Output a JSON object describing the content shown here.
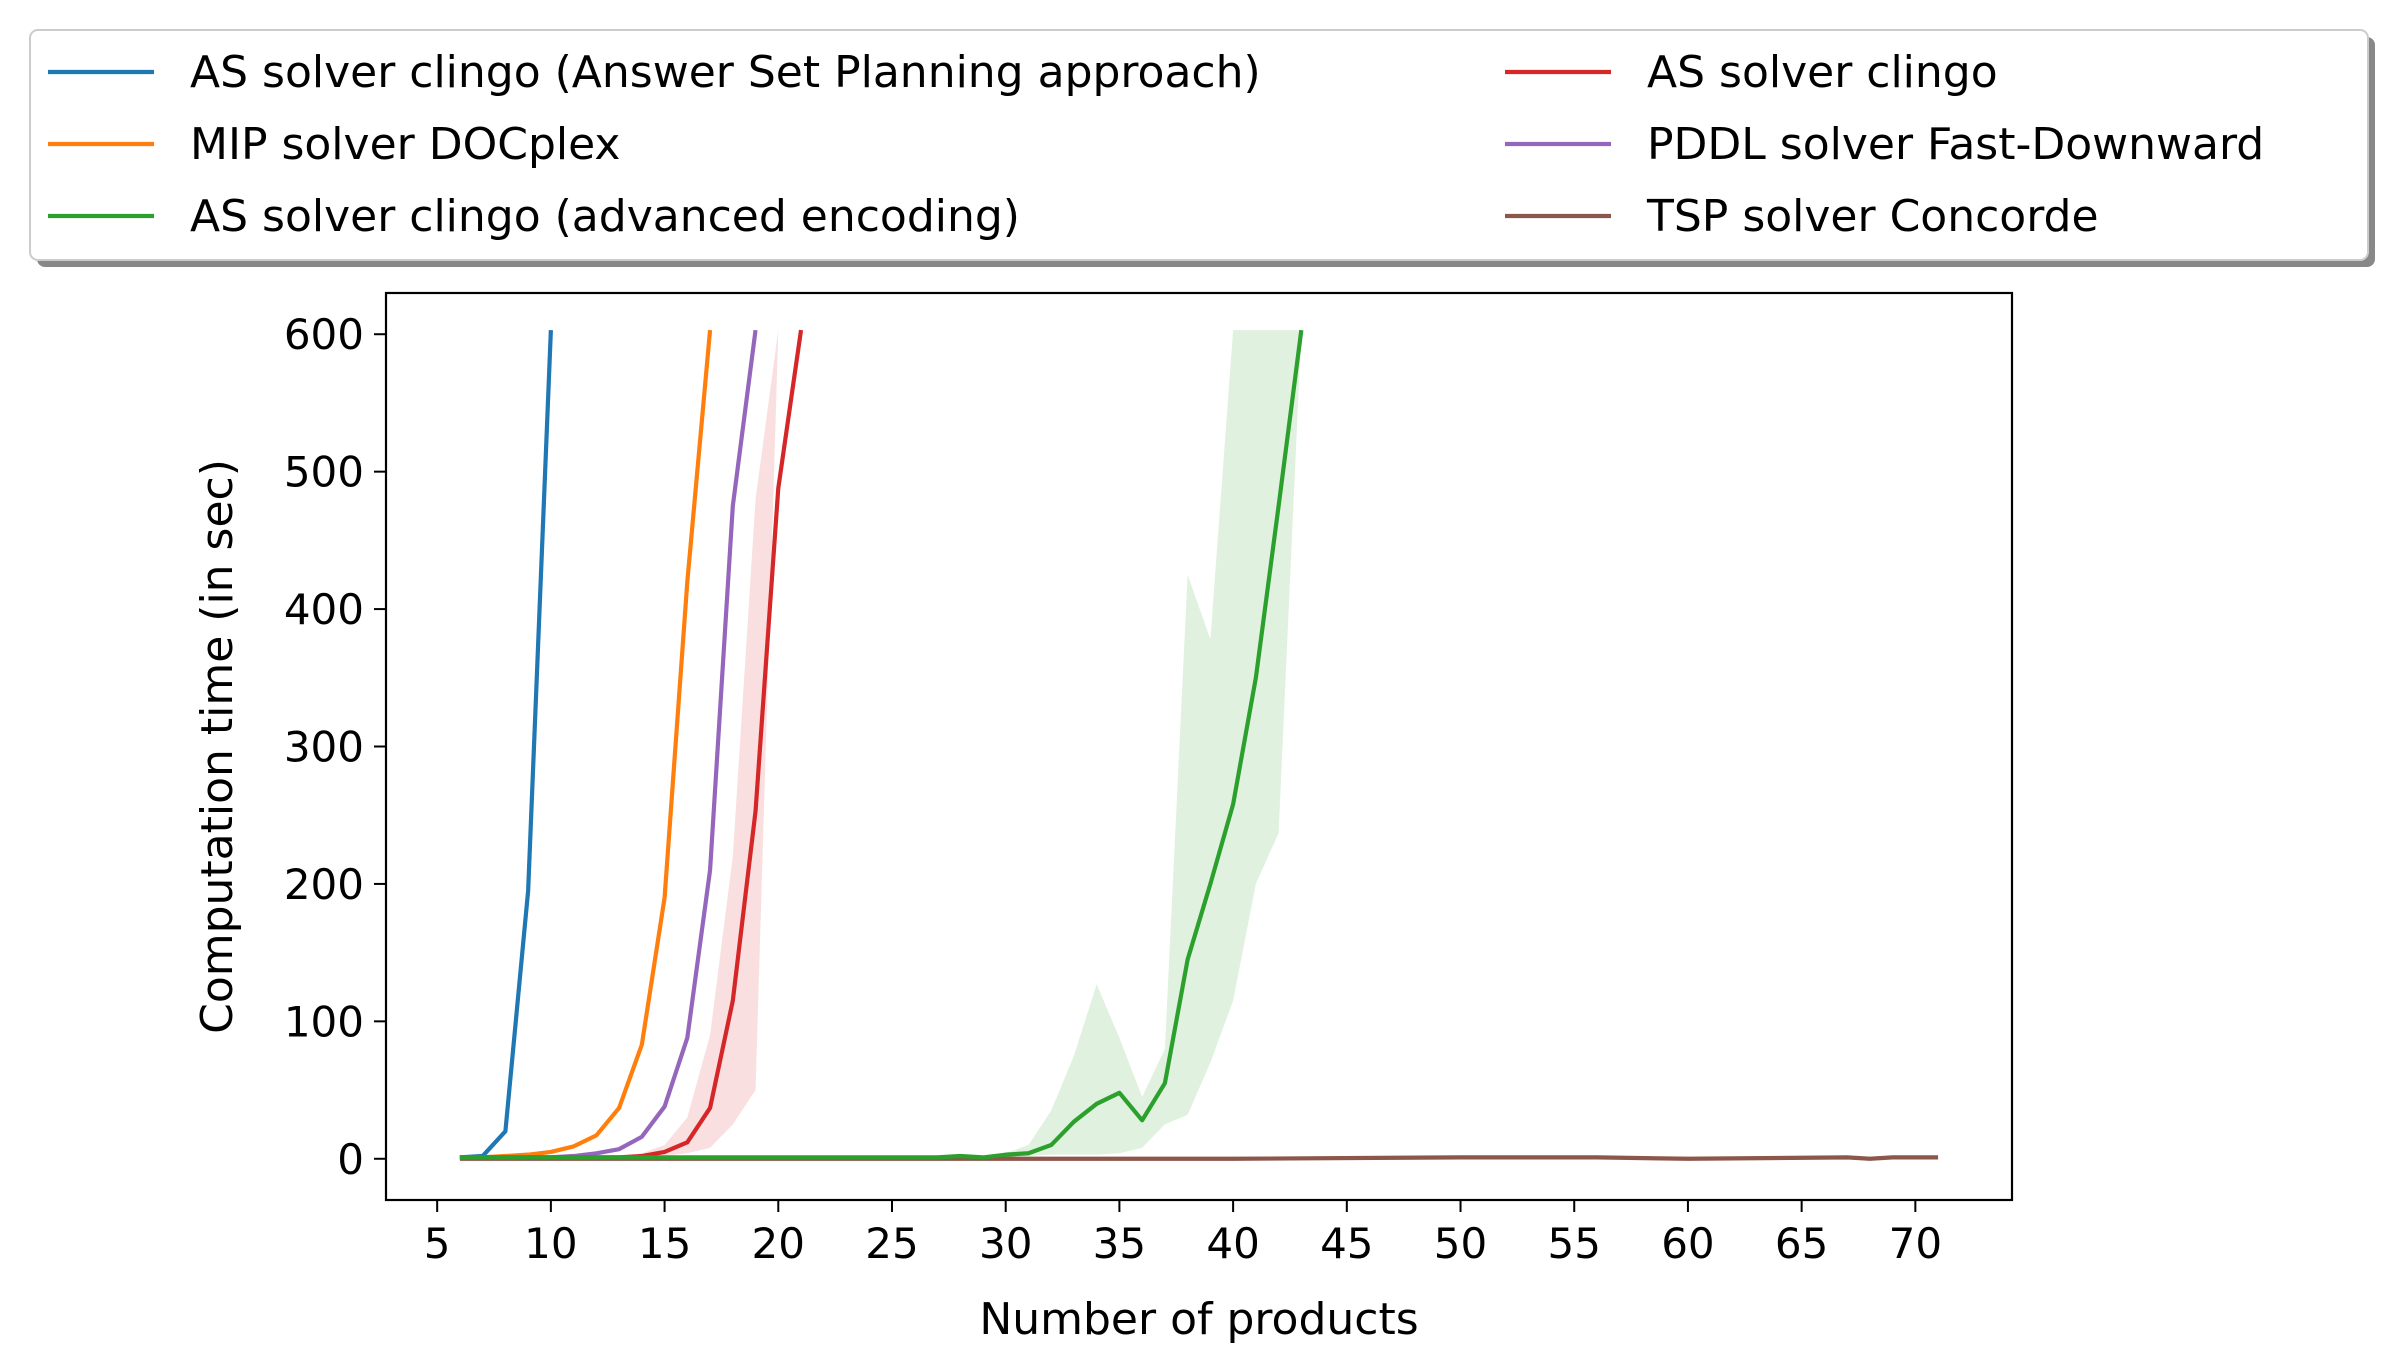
{
  "chart_data": {
    "type": "line",
    "title": "",
    "xlabel": "Number of products",
    "ylabel": "Computation time (in sec)",
    "xlim": [
      2.75,
      74.25
    ],
    "ylim": [
      -30,
      630
    ],
    "xticks": [
      5,
      10,
      15,
      20,
      25,
      30,
      35,
      40,
      45,
      50,
      55,
      60,
      65,
      70
    ],
    "yticks": [
      0,
      100,
      200,
      300,
      400,
      500,
      600
    ],
    "grid": false,
    "legend_placement": "top (above plot, two columns)",
    "series": [
      {
        "name": "AS solver clingo (Answer Set Planning approach)",
        "color": "#1f77b4",
        "x": [
          6,
          7,
          8,
          9,
          10
        ],
        "y": [
          1,
          2,
          20,
          195,
          603
        ]
      },
      {
        "name": "MIP solver DOCplex",
        "color": "#ff7f0e",
        "x": [
          6,
          7,
          8,
          9,
          10,
          11,
          12,
          13,
          14,
          15,
          16,
          17
        ],
        "y": [
          1,
          1,
          2,
          3,
          5,
          9,
          17,
          37,
          83,
          190,
          420,
          603
        ]
      },
      {
        "name": "AS solver clingo (advanced encoding)",
        "color": "#2ca02c",
        "x": [
          6,
          8,
          10,
          12,
          14,
          16,
          18,
          20,
          22,
          24,
          26,
          27,
          28,
          29,
          30,
          31,
          32,
          33,
          34,
          35,
          36,
          37,
          38,
          39,
          40,
          41,
          42,
          43
        ],
        "y": [
          1,
          1,
          1,
          1,
          1,
          1,
          1,
          1,
          1,
          1,
          1,
          1,
          2,
          1,
          3,
          4,
          10,
          27,
          40,
          48,
          28,
          55,
          145,
          200,
          258,
          350,
          475,
          603
        ],
        "band": {
          "x": [
            30,
            31,
            32,
            33,
            34,
            35,
            36,
            37,
            38,
            39,
            40,
            41,
            42,
            43
          ],
          "lower": [
            1,
            2,
            3,
            3,
            3,
            4,
            8,
            25,
            32,
            70,
            115,
            200,
            237,
            603
          ],
          "upper": [
            4,
            10,
            35,
            75,
            127,
            88,
            45,
            80,
            425,
            378,
            603,
            603,
            603,
            603
          ]
        }
      },
      {
        "name": "AS solver clingo",
        "color": "#d62728",
        "x": [
          6,
          8,
          10,
          12,
          13,
          14,
          15,
          16,
          17,
          18,
          19,
          20,
          21
        ],
        "y": [
          1,
          1,
          1,
          1,
          1,
          2,
          5,
          12,
          37,
          115,
          253,
          488,
          603
        ],
        "band": {
          "x": [
            13,
            14,
            15,
            16,
            17,
            18,
            19,
            20,
            21
          ],
          "lower": [
            1,
            1,
            2,
            4,
            8,
            25,
            50,
            603,
            603
          ],
          "upper": [
            2,
            4,
            10,
            30,
            90,
            220,
            480,
            603,
            603
          ]
        }
      },
      {
        "name": "PDDL solver Fast-Downward",
        "color": "#9467bd",
        "x": [
          6,
          8,
          10,
          11,
          12,
          13,
          14,
          15,
          16,
          17,
          18,
          19
        ],
        "y": [
          1,
          1,
          1,
          2,
          4,
          7,
          16,
          38,
          88,
          210,
          475,
          603
        ]
      },
      {
        "name": "TSP solver Concorde",
        "color": "#8c564b",
        "x": [
          6,
          10,
          20,
          28,
          30,
          40,
          50,
          56,
          60,
          67,
          68,
          69,
          71
        ],
        "y": [
          0,
          0,
          0,
          0,
          0,
          0,
          1,
          1,
          0,
          1,
          0,
          1,
          1
        ]
      }
    ]
  }
}
